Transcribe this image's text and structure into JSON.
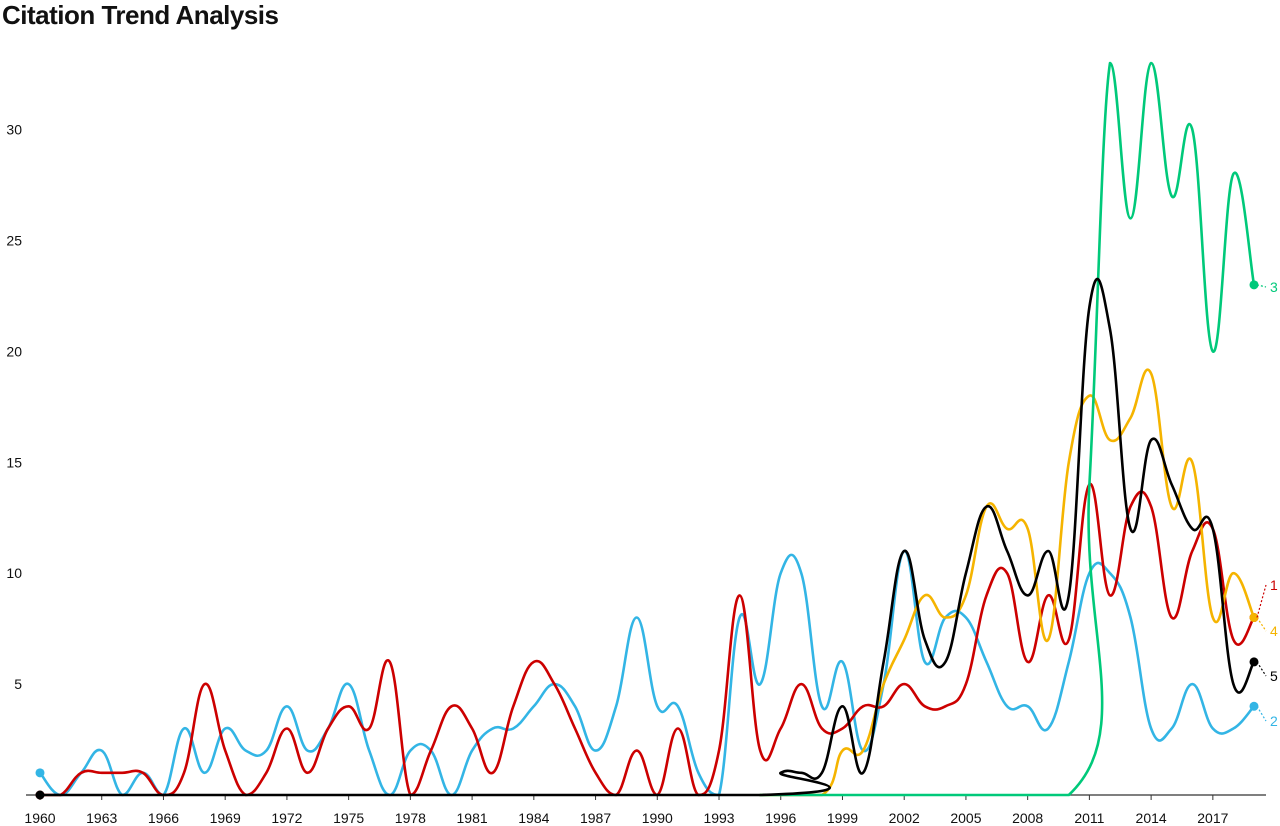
{
  "chart_data": {
    "type": "line",
    "title": "Citation Trend Analysis",
    "xlabel": "",
    "ylabel": "",
    "x_range": [
      1960,
      2019
    ],
    "ylim": [
      0,
      33
    ],
    "x_ticks": [
      1960,
      1963,
      1966,
      1969,
      1972,
      1975,
      1978,
      1981,
      1984,
      1987,
      1990,
      1993,
      1996,
      1999,
      2002,
      2005,
      2008,
      2011,
      2014,
      2017
    ],
    "y_ticks": [
      5,
      10,
      15,
      20,
      25,
      30
    ],
    "grid": false,
    "legend": "end-of-line labels",
    "series": [
      {
        "name": "1",
        "color": "#cc0000",
        "points": [
          [
            1960,
            0
          ],
          [
            1961,
            0
          ],
          [
            1962,
            1
          ],
          [
            1963,
            1
          ],
          [
            1964,
            1
          ],
          [
            1965,
            1
          ],
          [
            1966,
            0
          ],
          [
            1967,
            1
          ],
          [
            1968,
            5
          ],
          [
            1969,
            2
          ],
          [
            1970,
            0
          ],
          [
            1971,
            1
          ],
          [
            1972,
            3
          ],
          [
            1973,
            1
          ],
          [
            1974,
            3
          ],
          [
            1975,
            4
          ],
          [
            1976,
            3
          ],
          [
            1977,
            6
          ],
          [
            1978,
            0
          ],
          [
            1979,
            2
          ],
          [
            1980,
            4
          ],
          [
            1981,
            3
          ],
          [
            1982,
            1
          ],
          [
            1983,
            4
          ],
          [
            1984,
            6
          ],
          [
            1985,
            5
          ],
          [
            1986,
            3
          ],
          [
            1987,
            1
          ],
          [
            1988,
            0
          ],
          [
            1989,
            2
          ],
          [
            1990,
            0
          ],
          [
            1991,
            3
          ],
          [
            1992,
            0
          ],
          [
            1993,
            2
          ],
          [
            1994,
            9
          ],
          [
            1995,
            2
          ],
          [
            1996,
            3
          ],
          [
            1997,
            5
          ],
          [
            1998,
            3
          ],
          [
            1999,
            3
          ],
          [
            2000,
            4
          ],
          [
            2001,
            4
          ],
          [
            2002,
            5
          ],
          [
            2003,
            4
          ],
          [
            2004,
            4
          ],
          [
            2005,
            5
          ],
          [
            2006,
            9
          ],
          [
            2007,
            10
          ],
          [
            2008,
            6
          ],
          [
            2009,
            9
          ],
          [
            2010,
            7
          ],
          [
            2011,
            14
          ],
          [
            2012,
            9
          ],
          [
            2013,
            13
          ],
          [
            2014,
            13
          ],
          [
            2015,
            8
          ],
          [
            2016,
            11
          ],
          [
            2017,
            12
          ],
          [
            2018,
            7
          ],
          [
            2019,
            8
          ]
        ],
        "end_label": "1"
      },
      {
        "name": "2",
        "color": "#33b5e5",
        "points": [
          [
            1960,
            1
          ],
          [
            1961,
            0
          ],
          [
            1962,
            1
          ],
          [
            1963,
            2
          ],
          [
            1964,
            0
          ],
          [
            1965,
            1
          ],
          [
            1966,
            0
          ],
          [
            1967,
            3
          ],
          [
            1968,
            1
          ],
          [
            1969,
            3
          ],
          [
            1970,
            2
          ],
          [
            1971,
            2
          ],
          [
            1972,
            4
          ],
          [
            1973,
            2
          ],
          [
            1974,
            3
          ],
          [
            1975,
            5
          ],
          [
            1976,
            2
          ],
          [
            1977,
            0
          ],
          [
            1978,
            2
          ],
          [
            1979,
            2
          ],
          [
            1980,
            0
          ],
          [
            1981,
            2
          ],
          [
            1982,
            3
          ],
          [
            1983,
            3
          ],
          [
            1984,
            4
          ],
          [
            1985,
            5
          ],
          [
            1986,
            4
          ],
          [
            1987,
            2
          ],
          [
            1988,
            4
          ],
          [
            1989,
            8
          ],
          [
            1990,
            4
          ],
          [
            1991,
            4
          ],
          [
            1992,
            1
          ],
          [
            1993,
            0
          ],
          [
            1994,
            8
          ],
          [
            1995,
            5
          ],
          [
            1996,
            10
          ],
          [
            1997,
            10
          ],
          [
            1998,
            4
          ],
          [
            1999,
            6
          ],
          [
            2000,
            2
          ],
          [
            2001,
            5
          ],
          [
            2002,
            11
          ],
          [
            2003,
            6
          ],
          [
            2004,
            8
          ],
          [
            2005,
            8
          ],
          [
            2006,
            6
          ],
          [
            2007,
            4
          ],
          [
            2008,
            4
          ],
          [
            2009,
            3
          ],
          [
            2010,
            6
          ],
          [
            2011,
            10
          ],
          [
            2012,
            10
          ],
          [
            2013,
            8
          ],
          [
            2014,
            3
          ],
          [
            2015,
            3
          ],
          [
            2016,
            5
          ],
          [
            2017,
            3
          ],
          [
            2018,
            3
          ],
          [
            2019,
            4
          ]
        ],
        "end_label": "2"
      },
      {
        "name": "3",
        "color": "#00c97a",
        "points": [
          [
            1995,
            0
          ],
          [
            2010,
            0
          ],
          [
            2011,
            14
          ],
          [
            2012,
            33
          ],
          [
            2013,
            26
          ],
          [
            2014,
            33
          ],
          [
            2015,
            27
          ],
          [
            2016,
            30
          ],
          [
            2017,
            20
          ],
          [
            2018,
            28
          ],
          [
            2019,
            23
          ]
        ],
        "end_label": "3"
      },
      {
        "name": "4",
        "color": "#f5b400",
        "points": [
          [
            1995,
            0
          ],
          [
            1998,
            0
          ],
          [
            1999,
            2
          ],
          [
            2000,
            2
          ],
          [
            2001,
            5
          ],
          [
            2002,
            7
          ],
          [
            2003,
            9
          ],
          [
            2004,
            8
          ],
          [
            2005,
            9
          ],
          [
            2006,
            13
          ],
          [
            2007,
            12
          ],
          [
            2008,
            12
          ],
          [
            2009,
            7
          ],
          [
            2010,
            15
          ],
          [
            2011,
            18
          ],
          [
            2012,
            16
          ],
          [
            2013,
            17
          ],
          [
            2014,
            19
          ],
          [
            2015,
            13
          ],
          [
            2016,
            15
          ],
          [
            2017,
            8
          ],
          [
            2018,
            10
          ],
          [
            2019,
            8
          ]
        ],
        "end_label": "4"
      },
      {
        "name": "5",
        "color": "#000000",
        "points": [
          [
            1960,
            0
          ],
          [
            1995,
            0
          ],
          [
            1996,
            1
          ],
          [
            1997,
            1
          ],
          [
            1998,
            1
          ],
          [
            1999,
            4
          ],
          [
            2000,
            1
          ],
          [
            2001,
            6
          ],
          [
            2002,
            11
          ],
          [
            2003,
            7
          ],
          [
            2004,
            6
          ],
          [
            2005,
            10
          ],
          [
            2006,
            13
          ],
          [
            2007,
            11
          ],
          [
            2008,
            9
          ],
          [
            2009,
            11
          ],
          [
            2010,
            9
          ],
          [
            2011,
            22
          ],
          [
            2012,
            21
          ],
          [
            2013,
            12
          ],
          [
            2014,
            16
          ],
          [
            2015,
            14
          ],
          [
            2016,
            12
          ],
          [
            2017,
            12
          ],
          [
            2018,
            5
          ],
          [
            2019,
            6
          ]
        ],
        "end_label": "5"
      }
    ]
  }
}
